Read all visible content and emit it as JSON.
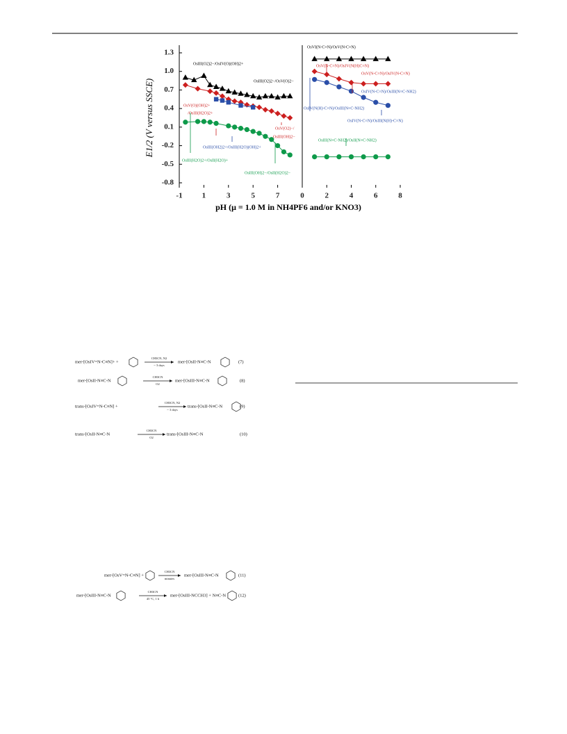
{
  "chart_data": [
    {
      "type": "scatter",
      "y_label": "E1/2 (V versus SSCE)",
      "x_label": "pH (μ = 1.0 M in NH4PF6 and/or KNO3)",
      "xlim": [
        -1,
        9
      ],
      "xticks": [
        -1,
        1,
        3,
        5,
        7
      ],
      "ylim": [
        -0.8,
        1.3
      ],
      "yticks": [
        1.3,
        {
          "value": 1,
          "label": "1.0"
        },
        0.7,
        0.4,
        0.1,
        -0.2,
        -0.5,
        -0.8
      ],
      "series": [
        {
          "color": "#000000",
          "marker": "triangle",
          "x": [
            -0.5,
            0.2,
            1,
            1.5,
            2,
            2.5,
            3,
            3.5,
            4,
            4.5,
            5,
            5.5,
            6,
            6.5,
            7,
            7.5,
            8
          ],
          "values": [
            0.9,
            0.86,
            0.93,
            0.78,
            0.75,
            0.72,
            0.68,
            0.66,
            0.64,
            0.62,
            0.6,
            0.58,
            0.6,
            0.6,
            0.58,
            0.6,
            0.6
          ]
        },
        {
          "color": "#cc1f1f",
          "marker": "diamond",
          "x": [
            -0.5,
            0.5,
            1.5,
            2,
            2.5,
            3,
            3.5,
            4,
            4.5,
            5,
            5.5,
            6,
            6.5,
            7,
            7.5,
            8
          ],
          "values": [
            0.78,
            0.72,
            0.68,
            0.65,
            0.6,
            0.55,
            0.52,
            0.5,
            0.46,
            0.44,
            0.42,
            0.38,
            0.36,
            0.32,
            0.28,
            0.25
          ]
        },
        {
          "color": "#2a4ea8",
          "marker": "square",
          "x": [
            2,
            2.5,
            3,
            4,
            5
          ],
          "values": [
            0.55,
            0.53,
            0.5,
            0.45,
            0.42
          ]
        },
        {
          "color": "#0e9a4a",
          "marker": "circle",
          "x": [
            -0.5,
            0.5,
            1,
            1.5,
            2,
            3,
            3.5,
            4,
            4.5,
            5,
            5.5,
            6,
            6.5,
            7,
            7.5,
            8
          ],
          "values": [
            0.18,
            0.19,
            0.19,
            0.18,
            0.16,
            0.12,
            0.1,
            0.08,
            0.06,
            0.03,
            0,
            -0.05,
            -0.1,
            -0.2,
            -0.3,
            -0.35
          ]
        }
      ],
      "annotations": [
        {
          "text": "OsIII(O2)2−/OsIV(O)(OH)2+",
          "color": "#000000"
        },
        {
          "text": "OsIII(O2)2−/OsV(O)2−",
          "color": "#000000"
        },
        {
          "text": "OsV(O)(OH)2+",
          "color": "#cc1f1f"
        },
        {
          "text": "/OsIII(H2O)2+",
          "color": "#cc1f1f"
        },
        {
          "text": "OsV(O2)−/",
          "color": "#cc1f1f"
        },
        {
          "text": "OsIII(OH)2−",
          "color": "#cc1f1f"
        },
        {
          "text": "OsIII(OH2)2+/OsIII(H2O)(OH)2+",
          "color": "#2a4ea8"
        },
        {
          "text": "OsIII(H2O)2+/OsII(H2O)+",
          "color": "#0e9a4a"
        },
        {
          "text": "OsIII(OH)2−/OsII(H2O)2−",
          "color": "#0e9a4a"
        }
      ]
    },
    {
      "type": "scatter",
      "xlim": [
        0,
        8
      ],
      "xticks": [
        0,
        2,
        4,
        6,
        8
      ],
      "ylim": [
        -0.8,
        1.3
      ],
      "series": [
        {
          "color": "#000000",
          "marker": "triangle",
          "x": [
            1,
            2,
            3,
            4,
            5,
            6,
            7
          ],
          "values": [
            1.2,
            1.2,
            1.2,
            1.2,
            1.2,
            1.2,
            1.2
          ]
        },
        {
          "color": "#cc1f1f",
          "marker": "diamond",
          "x": [
            1,
            2,
            3,
            4,
            5,
            6,
            7
          ],
          "values": [
            1,
            0.95,
            0.88,
            0.82,
            0.8,
            0.8,
            0.8
          ]
        },
        {
          "color": "#2a4ea8",
          "marker": "circle",
          "x": [
            1,
            2,
            3,
            4,
            5,
            6,
            7
          ],
          "values": [
            0.87,
            0.82,
            0.75,
            0.68,
            0.58,
            0.5,
            0.45
          ]
        },
        {
          "color": "#0e9a4a",
          "marker": "circle",
          "x": [
            1,
            2,
            3,
            4,
            5,
            6,
            7
          ],
          "values": [
            -0.38,
            -0.38,
            -0.38,
            -0.38,
            -0.38,
            -0.38,
            -0.38
          ]
        }
      ],
      "annotations": [
        {
          "text": "OsVI(N-C≡N)/OsV(N-C≡N)",
          "color": "#000000"
        },
        {
          "text": "OsV(N-C≡N)/OsIV(N(H)C≡N)",
          "color": "#cc1f1f"
        },
        {
          "text": "OsV(N-C≡N)/OsIV(N-C≡N)",
          "color": "#cc1f1f"
        },
        {
          "text": "OsIV(N-C≡N)/OsIII(N≡C-NH2)",
          "color": "#2a4ea8"
        },
        {
          "text": "OsIV(N(H)-C≡N)/OsIII(N≡C-NH2)",
          "color": "#2a4ea8"
        },
        {
          "text": "OsIV(N-C≡N)/OsIII(N(H)-C≡N)",
          "color": "#2a4ea8"
        },
        {
          "text": "OsIII(N≡C-NH2)/OsII(N≡C-NH2)",
          "color": "#0e9a4a"
        }
      ]
    }
  ],
  "equations": [
    {
      "left": "mer-[OsIV=N-C≡N]+ +",
      "above": "CH3CN, N2",
      "below": "~ 3 days",
      "right": "mer-[OsII-N≡C-N",
      "number": "(7)"
    },
    {
      "left": "mer-[OsII-N≡C-N",
      "above": "CH3CN",
      "below": "O2",
      "right": "mer-[OsIII-N≡C-N",
      "number": "(8)"
    },
    {
      "left": "trans-[OsIV=N-C≡N] +",
      "above": "CH3CN, N2",
      "below": "~ 3 days",
      "right": "trans-[OsII-N≡C-N",
      "number": "(9)"
    },
    {
      "left": "trans-[OsII-N≡C-N",
      "above": "CH3CN",
      "below": "O2",
      "right": "trans-[OsIII-N≡C-N",
      "number": "(10)"
    },
    {
      "left": "mer-[OsV=N-C≡N] +",
      "above": "CH3CN",
      "below": "minutes",
      "right": "mer-[OsIII-N≡C-N",
      "number": "(11)"
    },
    {
      "left": "mer-[OsIII-N≡C-N",
      "above": "CH3CN",
      "below": "45 °C, 1 h",
      "right": "mer-[OsIII-NCCH3] + N≡C-N",
      "number": "(12)"
    }
  ]
}
